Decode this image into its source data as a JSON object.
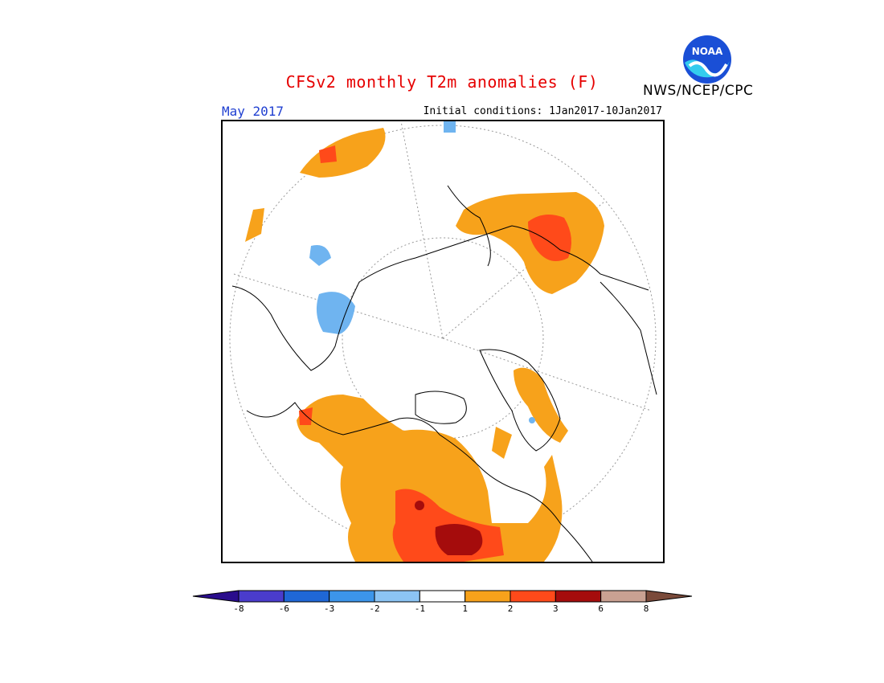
{
  "header": {
    "title": "CFSv2 monthly T2m anomalies (F)",
    "agency": "NWS/NCEP/CPC",
    "logo_text": "NOAA",
    "month": "May 2017",
    "initial_conditions": "Initial conditions: 1Jan2017-10Jan2017"
  },
  "colors": {
    "title": "#e60000",
    "month": "#1f3fd1",
    "cool_1": "#6fb4f0",
    "warm_1": "#f7a21b",
    "warm_2": "#ff4a1a",
    "warm_3": "#a50c0c",
    "warm_4": "#c9a192"
  },
  "legend": {
    "labels": [
      "-8",
      "-6",
      "-3",
      "-2",
      "-1",
      "1",
      "2",
      "3",
      "6",
      "8"
    ],
    "bins": [
      {
        "color": "#2a0d8c"
      },
      {
        "color": "#4a3ccc"
      },
      {
        "color": "#1f67d6"
      },
      {
        "color": "#3c95ea"
      },
      {
        "color": "#8cc4f4"
      },
      {
        "color": "#ffffff"
      },
      {
        "color": "#f7a21b"
      },
      {
        "color": "#ff4a1a"
      },
      {
        "color": "#a50c0c"
      },
      {
        "color": "#c9a192"
      },
      {
        "color": "#7a4a3a"
      }
    ]
  }
}
